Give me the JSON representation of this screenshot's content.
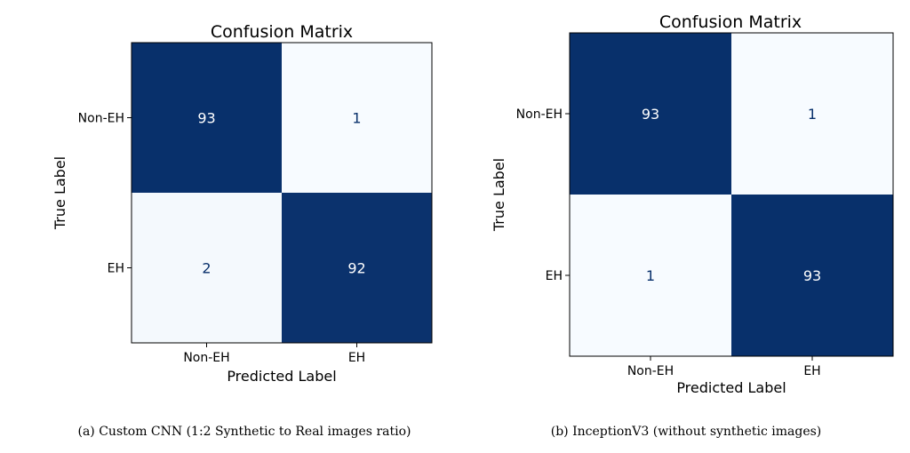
{
  "chart_data": [
    {
      "type": "heatmap",
      "title": "Confusion Matrix",
      "xlabel": "Predicted Label",
      "ylabel": "True Label",
      "x_categories": [
        "Non-EH",
        "EH"
      ],
      "y_categories": [
        "Non-EH",
        "EH"
      ],
      "values": [
        [
          93,
          1
        ],
        [
          2,
          92
        ]
      ],
      "colormap": "Blues",
      "colors": {
        "high": "#08306b",
        "low": "#f7fbff",
        "text_on_dark": "#ffffff",
        "text_on_light": "#08306b"
      },
      "caption": "(a) Custom CNN (1:2 Synthetic to Real images ratio)"
    },
    {
      "type": "heatmap",
      "title": "Confusion Matrix",
      "xlabel": "Predicted Label",
      "ylabel": "True Label",
      "x_categories": [
        "Non-EH",
        "EH"
      ],
      "y_categories": [
        "Non-EH",
        "EH"
      ],
      "values": [
        [
          93,
          1
        ],
        [
          1,
          93
        ]
      ],
      "colormap": "Blues",
      "colors": {
        "high": "#08306b",
        "low": "#f7fbff",
        "text_on_dark": "#ffffff",
        "text_on_light": "#08306b"
      },
      "caption": "(b) InceptionV3 (without synthetic images)"
    }
  ]
}
